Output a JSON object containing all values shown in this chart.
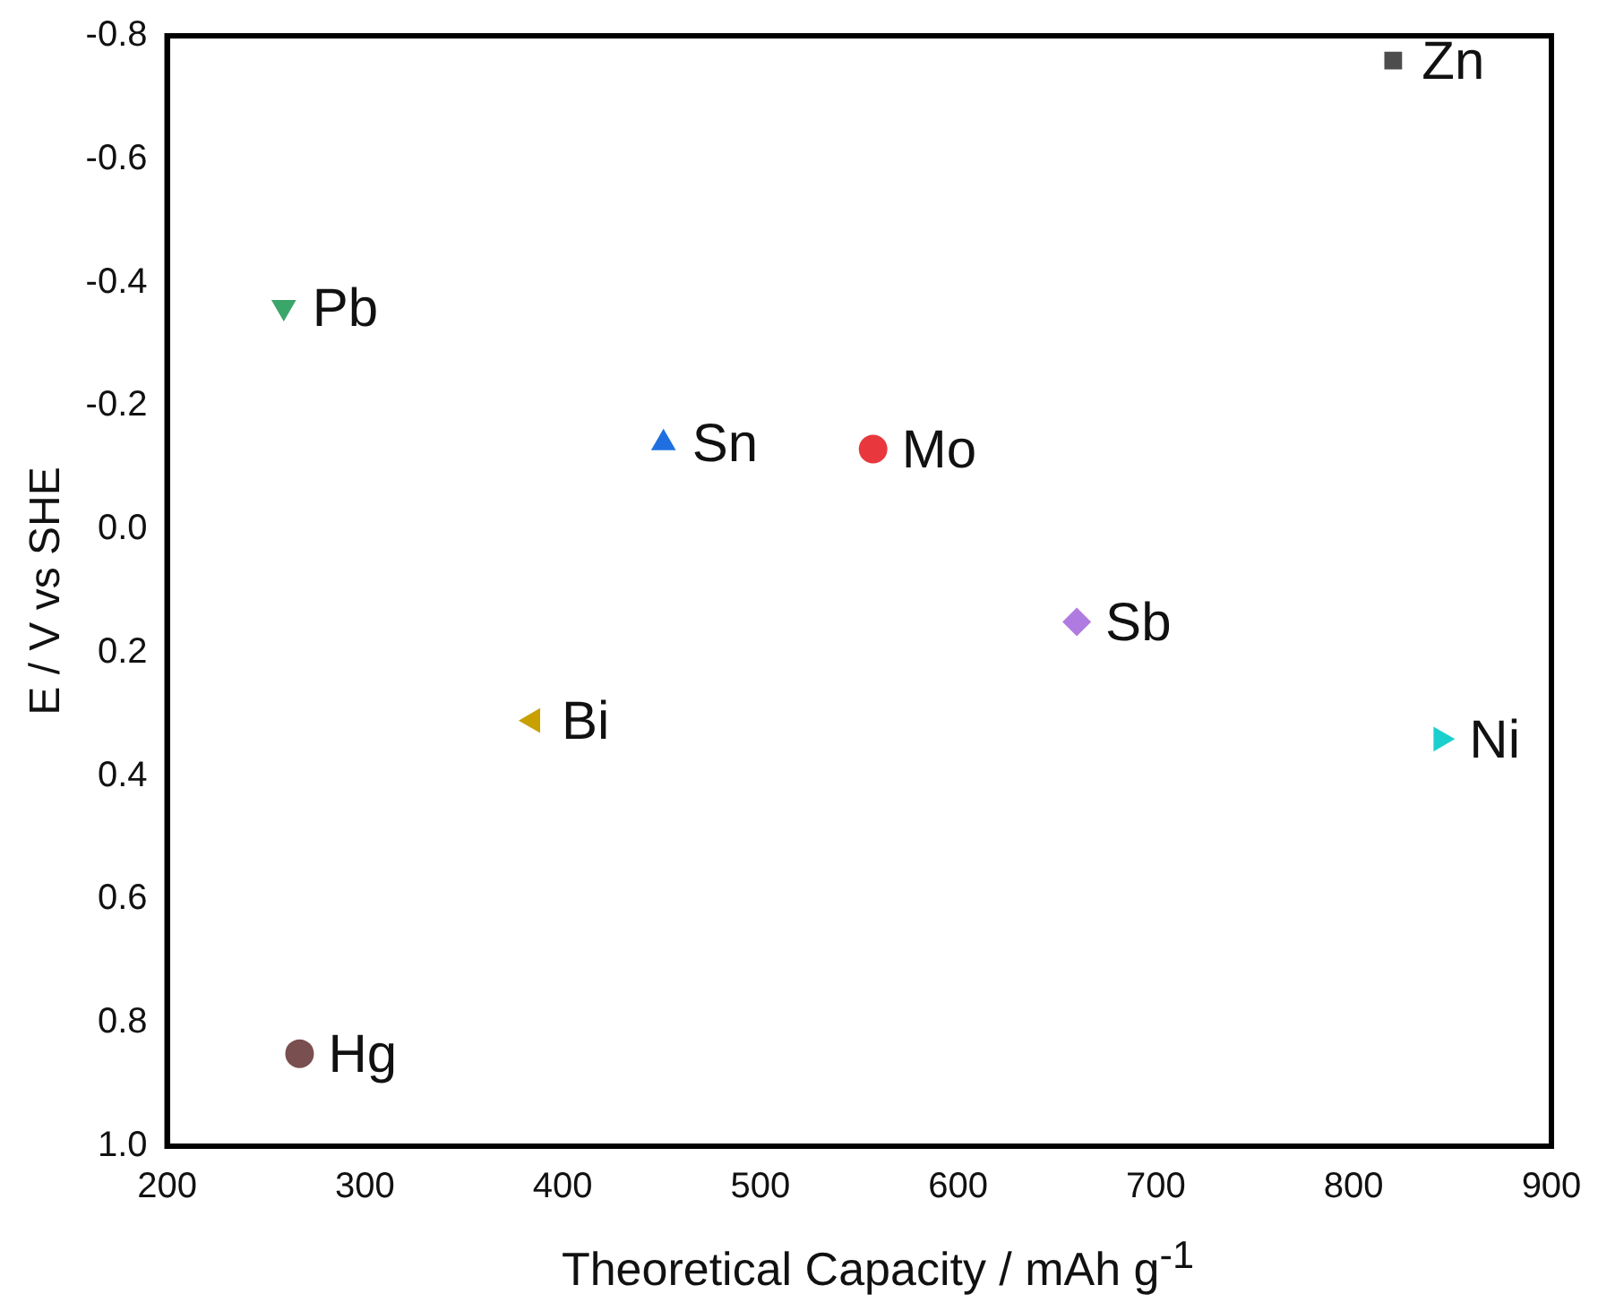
{
  "chart_data": {
    "type": "scatter",
    "xlabel": "Theoretical Capacity / mAh g$^{-1}$",
    "ylabel": "E / V vs SHE",
    "xlim": [
      200,
      900
    ],
    "xticks": [
      200,
      300,
      400,
      500,
      600,
      700,
      800,
      900
    ],
    "ylim": [
      1.0,
      -0.8
    ],
    "yticks": [
      {
        "value": -0.8,
        "label": "-0.8"
      },
      {
        "value": -0.6,
        "label": "-0.6"
      },
      {
        "value": -0.4,
        "label": "-0.4"
      },
      {
        "value": -0.2,
        "label": "-0.2"
      },
      {
        "value": 0,
        "label": "0.0"
      },
      {
        "value": 0.2,
        "label": "0.2"
      },
      {
        "value": 0.4,
        "label": "0.4"
      },
      {
        "value": 0.6,
        "label": "0.6"
      },
      {
        "value": 0.8,
        "label": "0.8"
      },
      {
        "value": 1,
        "label": "1.0"
      }
    ],
    "grid": false,
    "legend": false,
    "series": [
      {
        "name": "Zn",
        "color": "#4d4d4d",
        "marker": "square",
        "x": [
          820
        ],
        "values": [
          -0.76
        ]
      },
      {
        "name": "Pb",
        "color": "#3aa66a",
        "marker": "triangle-down",
        "x": [
          259
        ],
        "values": [
          -0.36
        ]
      },
      {
        "name": "Sn",
        "color": "#1f6fe0",
        "marker": "triangle",
        "x": [
          451
        ],
        "values": [
          -0.14
        ]
      },
      {
        "name": "Mo",
        "color": "#e8383d",
        "marker": "circle",
        "x": [
          557
        ],
        "values": [
          -0.13
        ]
      },
      {
        "name": "Sb",
        "color": "#b07be0",
        "marker": "diamond",
        "x": [
          660
        ],
        "values": [
          0.15
        ]
      },
      {
        "name": "Bi",
        "color": "#c8a000",
        "marker": "triangle-left",
        "x": [
          385
        ],
        "values": [
          0.31
        ]
      },
      {
        "name": "Ni",
        "color": "#1ccfcf",
        "marker": "triangle-right",
        "x": [
          844
        ],
        "values": [
          0.34
        ]
      },
      {
        "name": "Hg",
        "color": "#7a4f4f",
        "marker": "circle",
        "x": [
          267
        ],
        "values": [
          0.85
        ]
      }
    ]
  }
}
